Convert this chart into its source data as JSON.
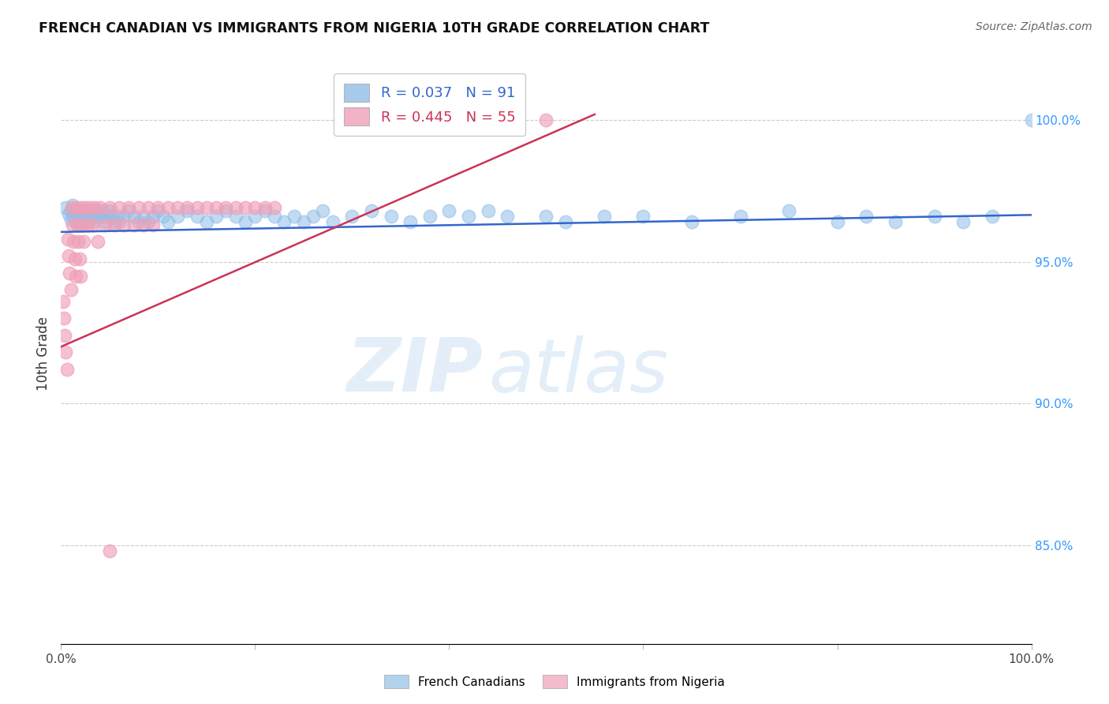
{
  "title": "FRENCH CANADIAN VS IMMIGRANTS FROM NIGERIA 10TH GRADE CORRELATION CHART",
  "source": "Source: ZipAtlas.com",
  "ylabel": "10th Grade",
  "legend_label_blue": "French Canadians",
  "legend_label_pink": "Immigrants from Nigeria",
  "r_blue": 0.037,
  "n_blue": 91,
  "r_pink": 0.445,
  "n_pink": 55,
  "blue_color": "#92bfe8",
  "pink_color": "#f0a0b8",
  "blue_line_color": "#3366cc",
  "pink_line_color": "#cc3355",
  "watermark_zip": "ZIP",
  "watermark_atlas": "atlas",
  "blue_x": [
    0.005,
    0.008,
    0.01,
    0.01,
    0.012,
    0.013,
    0.015,
    0.015,
    0.016,
    0.017,
    0.018,
    0.019,
    0.02,
    0.02,
    0.021,
    0.022,
    0.022,
    0.023,
    0.024,
    0.025,
    0.025,
    0.026,
    0.027,
    0.028,
    0.03,
    0.031,
    0.032,
    0.033,
    0.035,
    0.036,
    0.038,
    0.04,
    0.042,
    0.044,
    0.046,
    0.048,
    0.05,
    0.052,
    0.055,
    0.058,
    0.06,
    0.065,
    0.07,
    0.075,
    0.08,
    0.085,
    0.09,
    0.095,
    0.1,
    0.105,
    0.11,
    0.12,
    0.13,
    0.14,
    0.15,
    0.16,
    0.17,
    0.18,
    0.19,
    0.2,
    0.21,
    0.22,
    0.23,
    0.24,
    0.25,
    0.26,
    0.27,
    0.28,
    0.3,
    0.32,
    0.34,
    0.36,
    0.38,
    0.4,
    0.42,
    0.44,
    0.46,
    0.5,
    0.52,
    0.56,
    0.6,
    0.65,
    0.7,
    0.75,
    0.8,
    0.83,
    0.86,
    0.9,
    0.93,
    0.96,
    1.0
  ],
  "blue_y": [
    0.969,
    0.967,
    0.968,
    0.965,
    0.97,
    0.966,
    0.968,
    0.964,
    0.967,
    0.965,
    0.966,
    0.963,
    0.968,
    0.964,
    0.966,
    0.968,
    0.963,
    0.965,
    0.967,
    0.968,
    0.964,
    0.966,
    0.964,
    0.966,
    0.968,
    0.966,
    0.968,
    0.964,
    0.966,
    0.968,
    0.966,
    0.968,
    0.966,
    0.968,
    0.964,
    0.966,
    0.968,
    0.966,
    0.964,
    0.966,
    0.964,
    0.966,
    0.968,
    0.966,
    0.964,
    0.966,
    0.964,
    0.966,
    0.968,
    0.966,
    0.964,
    0.966,
    0.968,
    0.966,
    0.964,
    0.966,
    0.968,
    0.966,
    0.964,
    0.966,
    0.968,
    0.966,
    0.964,
    0.966,
    0.964,
    0.966,
    0.968,
    0.964,
    0.966,
    0.968,
    0.966,
    0.964,
    0.966,
    0.968,
    0.966,
    0.968,
    0.966,
    0.966,
    0.964,
    0.966,
    0.966,
    0.964,
    0.966,
    0.968,
    0.964,
    0.966,
    0.964,
    0.966,
    0.964,
    0.966,
    0.9999
  ],
  "pink_x": [
    0.002,
    0.003,
    0.004,
    0.005,
    0.006,
    0.007,
    0.008,
    0.009,
    0.01,
    0.011,
    0.012,
    0.013,
    0.014,
    0.015,
    0.016,
    0.017,
    0.018,
    0.019,
    0.02,
    0.021,
    0.022,
    0.023,
    0.025,
    0.027,
    0.03,
    0.033,
    0.035,
    0.038,
    0.04,
    0.045,
    0.05,
    0.055,
    0.06,
    0.065,
    0.07,
    0.075,
    0.08,
    0.085,
    0.09,
    0.095,
    0.1,
    0.11,
    0.12,
    0.13,
    0.14,
    0.15,
    0.16,
    0.17,
    0.18,
    0.19,
    0.2,
    0.21,
    0.22,
    0.5,
    0.05
  ],
  "pink_y": [
    0.936,
    0.93,
    0.924,
    0.918,
    0.912,
    0.958,
    0.952,
    0.946,
    0.94,
    0.969,
    0.963,
    0.957,
    0.951,
    0.945,
    0.969,
    0.963,
    0.957,
    0.951,
    0.945,
    0.969,
    0.963,
    0.957,
    0.969,
    0.963,
    0.969,
    0.963,
    0.969,
    0.957,
    0.969,
    0.963,
    0.969,
    0.963,
    0.969,
    0.963,
    0.969,
    0.963,
    0.969,
    0.963,
    0.969,
    0.963,
    0.969,
    0.969,
    0.969,
    0.969,
    0.969,
    0.969,
    0.969,
    0.969,
    0.969,
    0.969,
    0.969,
    0.969,
    0.969,
    1.0,
    0.848
  ],
  "blue_trendline_x": [
    0.0,
    1.0
  ],
  "blue_trendline_y": [
    0.9605,
    0.9665
  ],
  "pink_trendline_x": [
    0.0,
    0.55
  ],
  "pink_trendline_y": [
    0.92,
    1.002
  ],
  "xlim": [
    0.0,
    1.0
  ],
  "ylim": [
    0.815,
    1.02
  ],
  "ytick_positions": [
    0.85,
    0.9,
    0.95,
    1.0
  ],
  "ytick_labels": [
    "85.0%",
    "90.0%",
    "95.0%",
    "100.0%"
  ]
}
